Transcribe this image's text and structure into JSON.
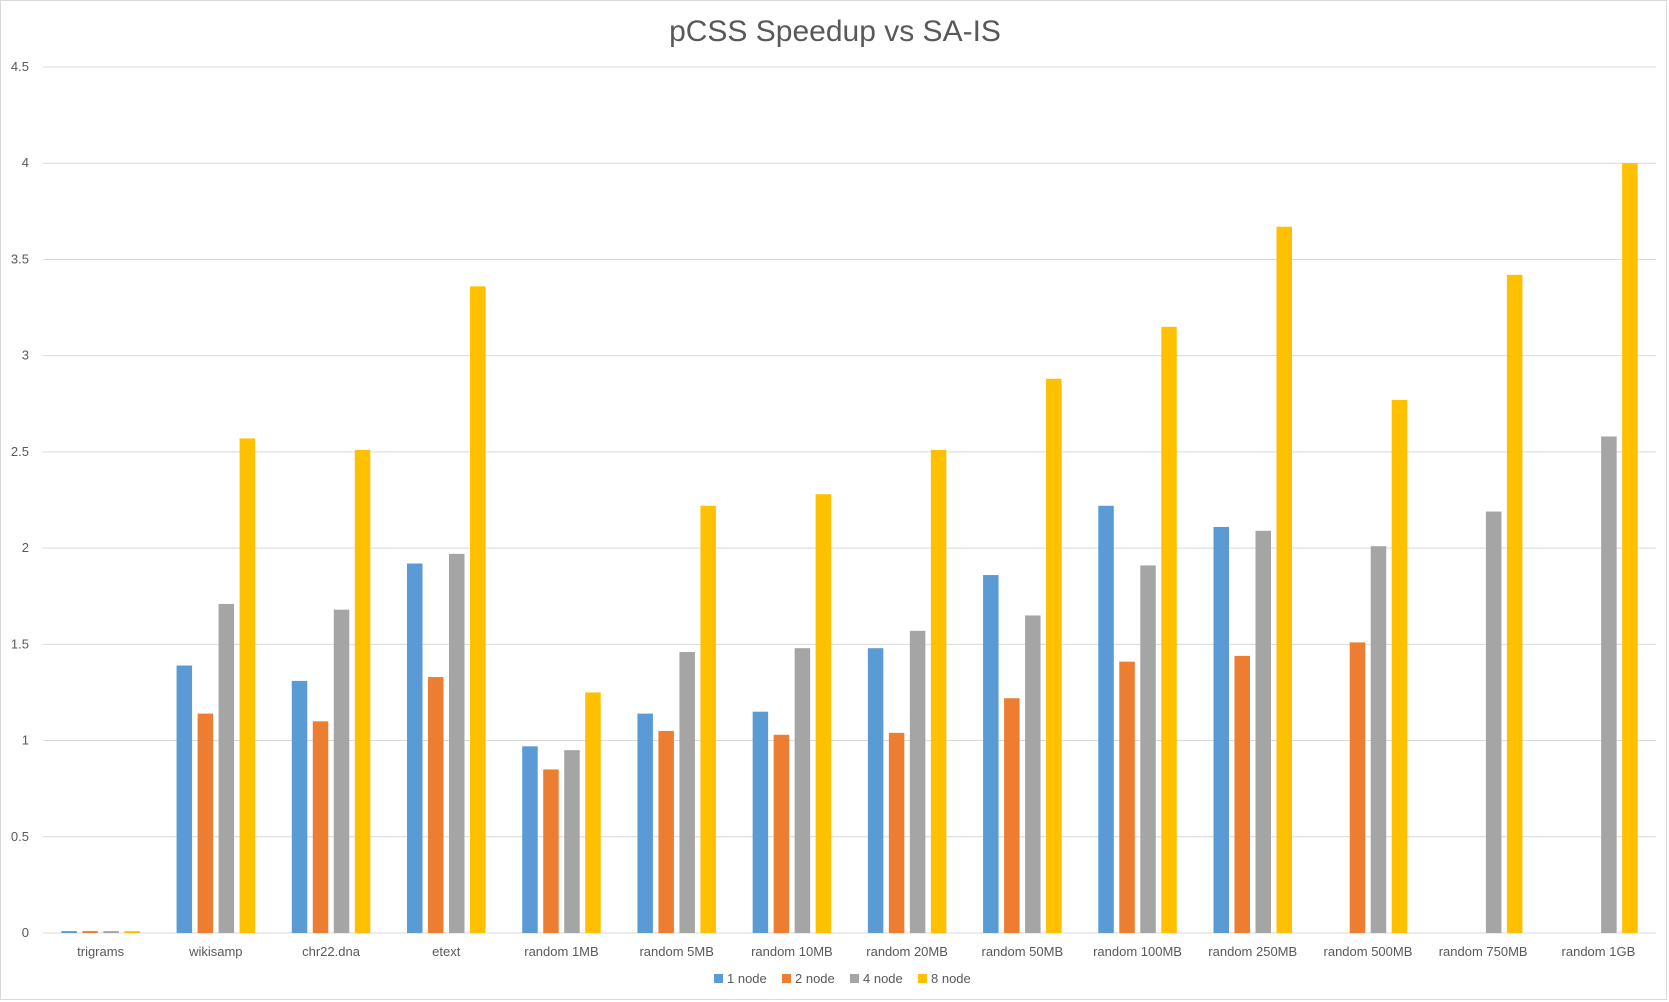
{
  "chart_data": {
    "type": "bar",
    "title": "pCSS Speedup vs SA-IS",
    "xlabel": "",
    "ylabel": "",
    "ylim": [
      0,
      4.5
    ],
    "yticks": [
      "0",
      "0.5",
      "1",
      "1.5",
      "2",
      "2.5",
      "3",
      "3.5",
      "4",
      "4.5"
    ],
    "grid": true,
    "legend_position": "bottom",
    "categories": [
      "trigrams",
      "wikisamp",
      "chr22.dna",
      "etext",
      "random 1MB",
      "random 5MB",
      "random 10MB",
      "random 20MB",
      "random 50MB",
      "random 100MB",
      "random 250MB",
      "random 500MB",
      "random 750MB",
      "random 1GB"
    ],
    "series": [
      {
        "name": "1 node",
        "color": "#5b9bd5",
        "values": [
          0.01,
          1.39,
          1.31,
          1.92,
          0.97,
          1.14,
          1.15,
          1.48,
          1.86,
          2.22,
          2.11,
          null,
          null,
          null
        ]
      },
      {
        "name": "2 node",
        "color": "#ed7d31",
        "values": [
          0.01,
          1.14,
          1.1,
          1.33,
          0.85,
          1.05,
          1.03,
          1.04,
          1.22,
          1.41,
          1.44,
          1.51,
          null,
          null
        ]
      },
      {
        "name": "4 node",
        "color": "#a5a5a5",
        "values": [
          0.01,
          1.71,
          1.68,
          1.97,
          0.95,
          1.46,
          1.48,
          1.57,
          1.65,
          1.91,
          2.09,
          2.01,
          2.19,
          2.58
        ]
      },
      {
        "name": "8 node",
        "color": "#ffc000",
        "values": [
          0.01,
          2.57,
          2.51,
          3.36,
          1.25,
          2.22,
          2.28,
          2.51,
          2.88,
          3.15,
          3.67,
          2.77,
          3.42,
          4.0
        ]
      }
    ]
  }
}
